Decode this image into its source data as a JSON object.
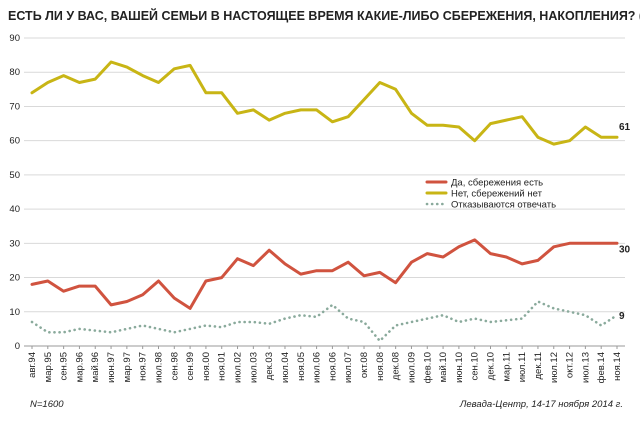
{
  "chart_data": {
    "type": "line",
    "title": "ЕСТЬ ЛИ У ВАС, ВАШЕЙ СЕМЬИ В НАСТОЯЩЕЕ  ВРЕМЯ КАКИЕ-ЛИБО СБЕРЕЖЕНИЯ, НАКОПЛЕНИЯ? (В %)",
    "xlabel": "",
    "ylabel": "",
    "ylim": [
      0,
      90
    ],
    "yticks": [
      0,
      10,
      20,
      30,
      40,
      50,
      60,
      70,
      80,
      90
    ],
    "grid": true,
    "legend_position": "right",
    "categories": [
      "авг.94",
      "мар.95",
      "сен.95",
      "мар.96",
      "май.96",
      "июн.97",
      "мар.97",
      "ноя.97",
      "июл.98",
      "сен.98",
      "сен.99",
      "ноя.00",
      "ноя.01",
      "июл.02",
      "июл.03",
      "дек.03",
      "июл.04",
      "ноя.05",
      "июл.06",
      "ноя.06",
      "июл.07",
      "окт.08",
      "ноя.08",
      "дек.08",
      "июл.09",
      "фев.10",
      "май.10",
      "июн.10",
      "сен.10",
      "дек.10",
      "мар.11",
      "июл.11",
      "дек.11",
      "июл.12",
      "окт.12",
      "июл.13",
      "фев.14",
      "ноя.14"
    ],
    "series": [
      {
        "name": "Да, сбережения есть",
        "color": "#d0533f",
        "style": "solid",
        "values": [
          18,
          19,
          16,
          17.5,
          17.5,
          12,
          13,
          15,
          19,
          14,
          11,
          19,
          20,
          25.5,
          23.5,
          28,
          24,
          21,
          22,
          22,
          24.5,
          20.5,
          21.5,
          18.5,
          24.5,
          27,
          26,
          29,
          31,
          27,
          26,
          24,
          25,
          29,
          30,
          30,
          30,
          30
        ]
      },
      {
        "name": "Нет, сбережений нет",
        "color": "#c8b515",
        "style": "solid",
        "values": [
          74,
          77,
          79,
          77,
          78,
          83,
          81.5,
          79,
          77,
          81,
          82,
          74,
          74,
          68,
          69,
          66,
          68,
          69,
          69,
          65.5,
          67,
          72,
          77,
          75,
          68,
          64.5,
          64.5,
          64,
          60,
          65,
          66,
          67,
          61,
          59,
          60,
          64,
          61,
          61
        ]
      },
      {
        "name": "Отказываются отвечать",
        "color": "#8aaa9c",
        "style": "dotted",
        "values": [
          7,
          4,
          4,
          5,
          4.5,
          4,
          5,
          6,
          5,
          4,
          5,
          6,
          5.5,
          7,
          7,
          6.5,
          8,
          9,
          8.5,
          12,
          8,
          7,
          1.5,
          6,
          7,
          8,
          9,
          7,
          8,
          7,
          7.5,
          8,
          13,
          11,
          10,
          9,
          6,
          9
        ]
      }
    ],
    "end_labels": [
      "30",
      "61",
      "9"
    ],
    "source_note": "Левада-Центр, 14-17 ноября 2014  г.",
    "sample_note": "N=1600"
  }
}
